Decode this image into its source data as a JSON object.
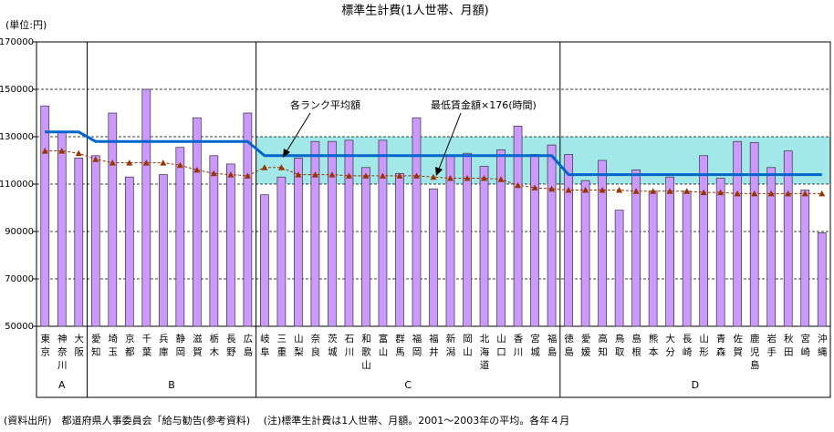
{
  "chart_data": {
    "type": "bar",
    "title": "標準生計費(1人世帯、月額)",
    "unit_label": "(単位:円)",
    "categories": [
      "東京",
      "神奈川",
      "大阪",
      "愛知",
      "埼玉",
      "京都",
      "千葉",
      "兵庫",
      "静岡",
      "滋賀",
      "栃木",
      "長野",
      "広島",
      "岐阜",
      "三重",
      "山梨",
      "奈良",
      "茨城",
      "石川",
      "和歌山",
      "富山",
      "群馬",
      "福岡",
      "福井",
      "新潟",
      "岡山",
      "北海道",
      "山口",
      "香川",
      "宮城",
      "福島",
      "徳島",
      "愛媛",
      "高知",
      "鳥取",
      "島根",
      "熊本",
      "大分",
      "長崎",
      "山形",
      "青森",
      "佐賀",
      "鹿児島",
      "岩手",
      "秋田",
      "宮崎",
      "沖縄"
    ],
    "values": [
      143000,
      132000,
      121000,
      122000,
      140000,
      113000,
      150000,
      114000,
      125500,
      138000,
      122000,
      118500,
      140000,
      105500,
      113000,
      121000,
      128000,
      128000,
      128500,
      117000,
      128500,
      114500,
      138000,
      108000,
      122000,
      123000,
      117500,
      124500,
      134500,
      122500,
      126500,
      122500,
      111500,
      120000,
      99000,
      116000,
      107000,
      113000,
      107000,
      122000,
      112500,
      128000,
      127500,
      117000,
      124000,
      107500,
      89500
    ],
    "color": "#cc99ff",
    "series": [
      {
        "name": "各ランク平均額",
        "color": "#0066cc",
        "values": [
          132000,
          132000,
          132000,
          128000,
          128000,
          128000,
          128000,
          128000,
          128000,
          128000,
          128000,
          128000,
          128000,
          122000,
          122000,
          122000,
          122000,
          122000,
          122000,
          122000,
          122000,
          122000,
          122000,
          122000,
          122000,
          122000,
          122000,
          122000,
          122000,
          122000,
          122000,
          114000,
          114000,
          114000,
          114000,
          114000,
          114000,
          114000,
          114000,
          114000,
          114000,
          114000,
          114000,
          114000,
          114000,
          114000,
          114000
        ]
      },
      {
        "name": "最低賃金額×176(時間)",
        "color": "#993300",
        "values": [
          124000,
          124000,
          123000,
          120500,
          119000,
          119000,
          119000,
          119000,
          118000,
          116000,
          114500,
          114000,
          113500,
          117000,
          117000,
          114000,
          114000,
          114000,
          113500,
          113500,
          113500,
          113500,
          113500,
          113000,
          112500,
          112500,
          112500,
          112000,
          109500,
          108500,
          108000,
          107500,
          107500,
          107500,
          107500,
          107000,
          107000,
          107000,
          107000,
          106500,
          106500,
          106000,
          106000,
          106000,
          106000,
          106000,
          106000
        ]
      }
    ],
    "groups": [
      {
        "label": "A",
        "size": 3
      },
      {
        "label": "B",
        "size": 10
      },
      {
        "label": "C",
        "size": 18
      },
      {
        "label": "D",
        "size": 16
      }
    ],
    "band": {
      "ylim": [
        110000,
        130000
      ],
      "color": "#33cccc",
      "groups": [
        "C",
        "D"
      ]
    },
    "ylim": [
      50000,
      170000
    ],
    "yticks": [
      50000,
      70000,
      90000,
      110000,
      130000,
      150000,
      170000
    ],
    "grid": true,
    "footer": "(資料出所)　都道府県人事委員会「給与勧告(参考資料)　 (注)標準生計費は1人世帯、月額。2001～2003年の平均。各年４月"
  }
}
